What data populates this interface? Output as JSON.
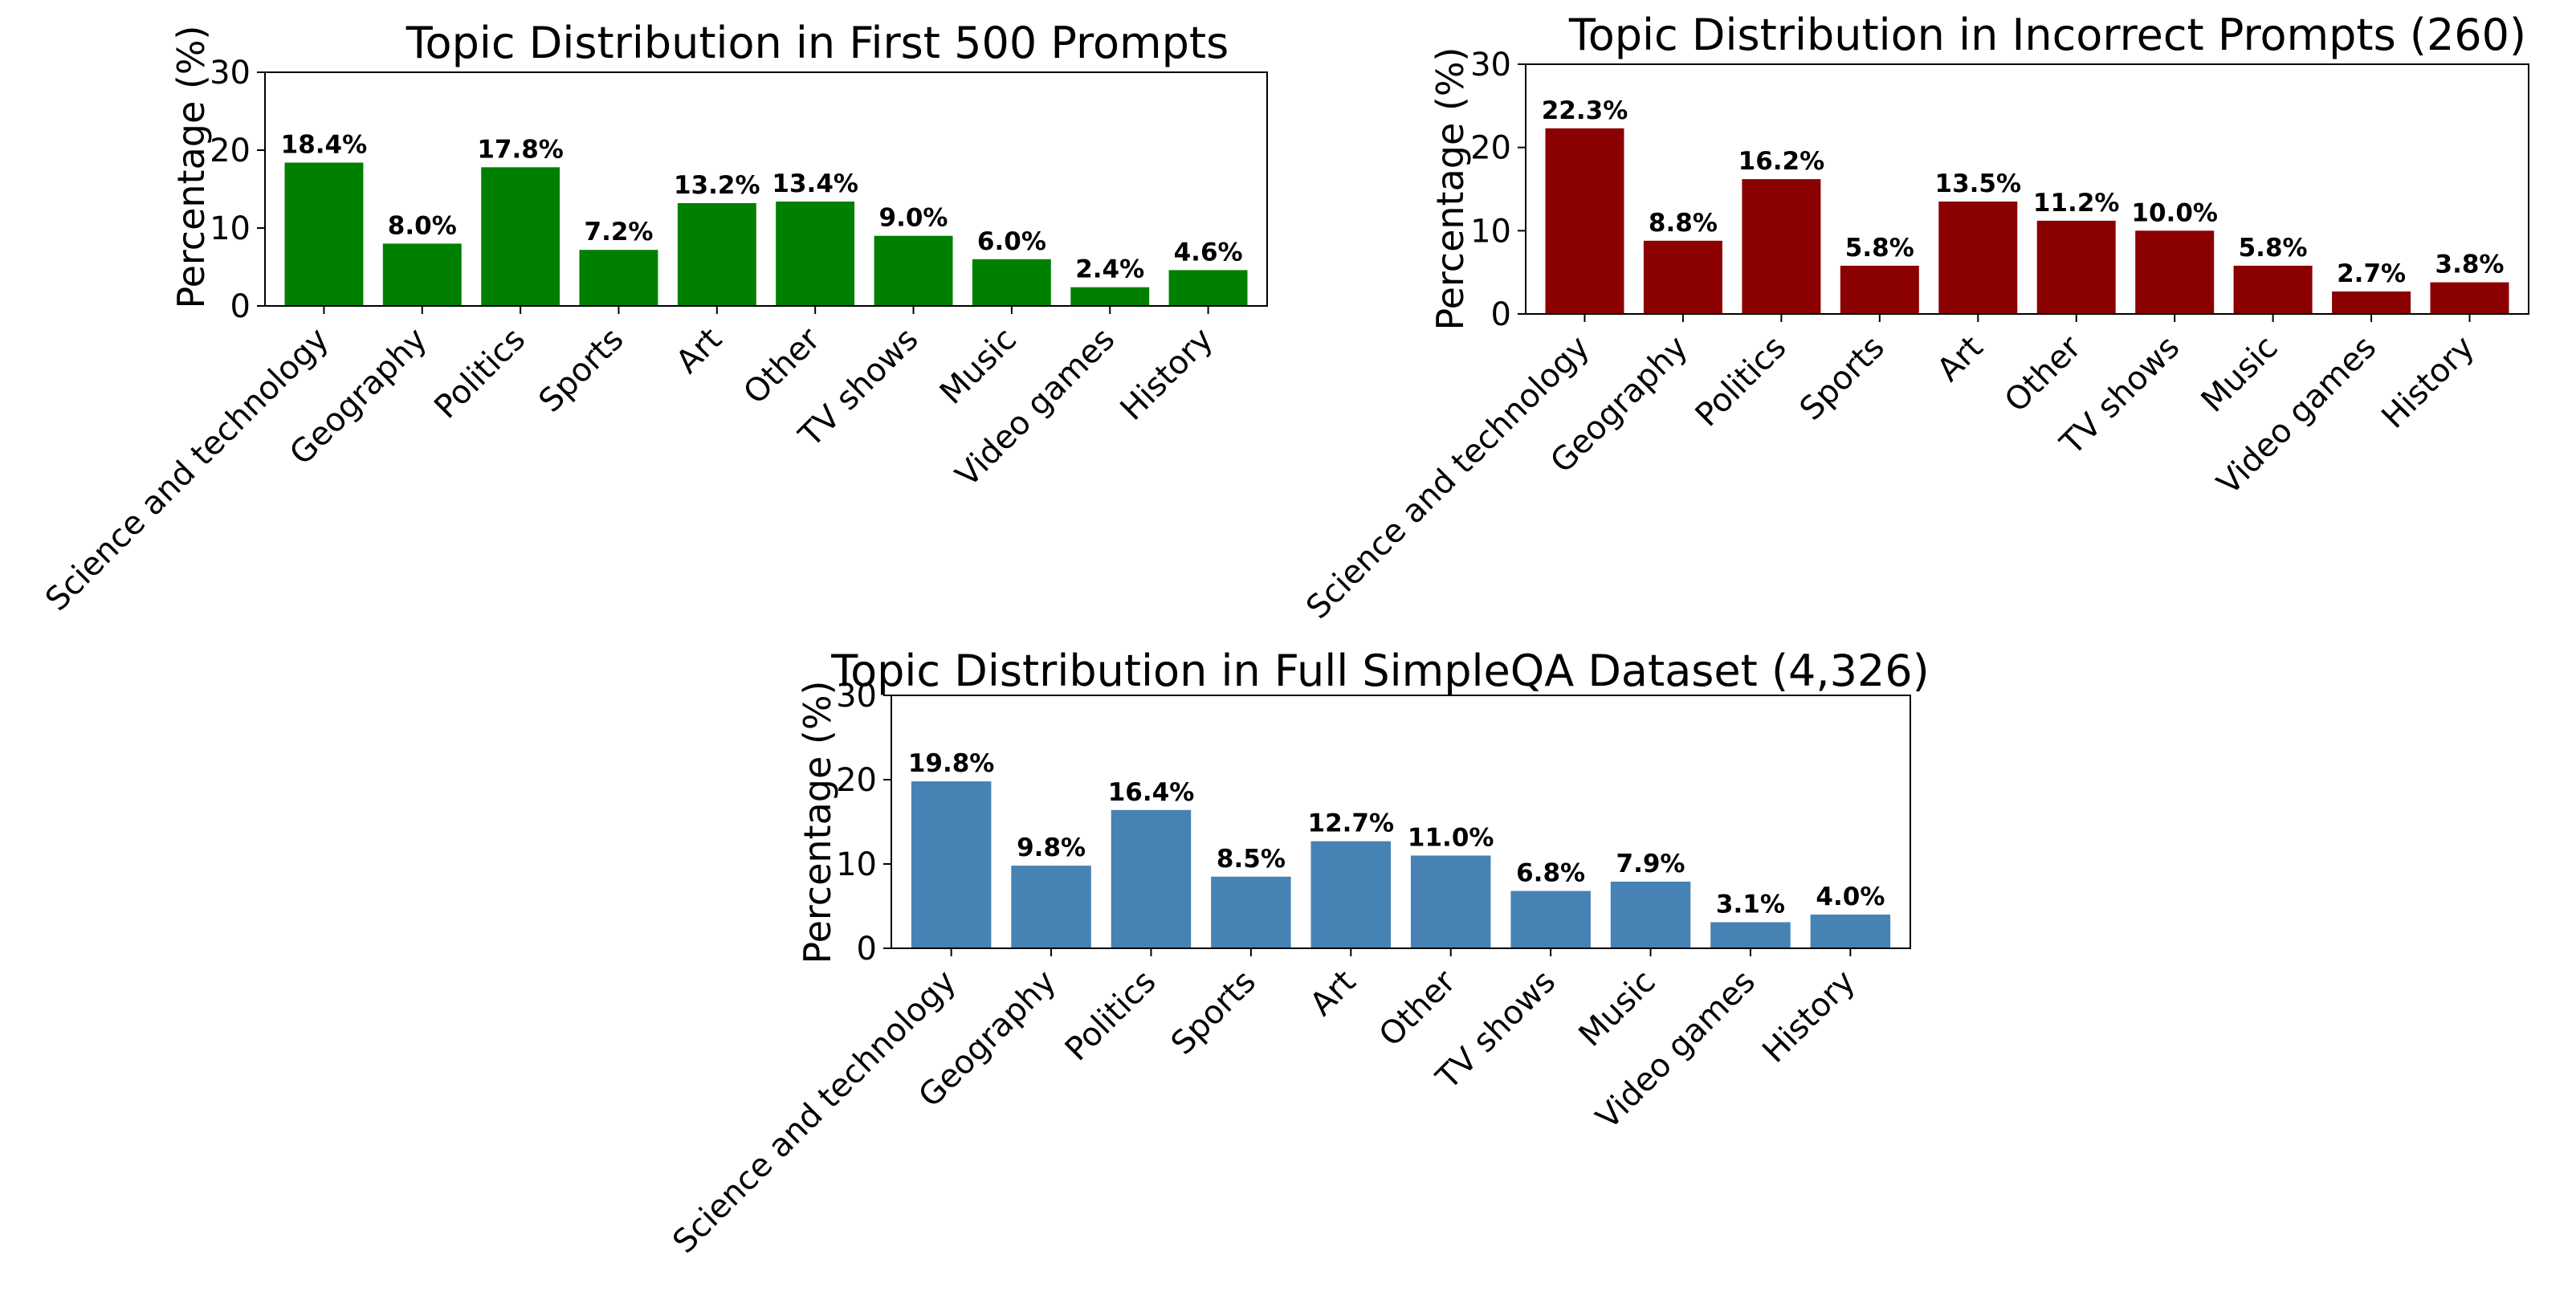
{
  "chart_data": [
    {
      "type": "bar",
      "title": "Topic Distribution in First 500 Prompts",
      "xlabel": "",
      "ylabel": "Percentage (%)",
      "ylim": [
        0,
        30
      ],
      "yticks": [
        "0",
        "10",
        "20",
        "30"
      ],
      "color": "#008000",
      "grid": false,
      "categories": [
        "Science and technology",
        "Geography",
        "Politics",
        "Sports",
        "Art",
        "Other",
        "TV shows",
        "Music",
        "Video games",
        "History"
      ],
      "values": [
        18.4,
        8.0,
        17.8,
        7.2,
        13.2,
        13.4,
        9.0,
        6.0,
        2.4,
        4.6
      ],
      "value_labels": [
        "18.4%",
        "8.0%",
        "17.8%",
        "7.2%",
        "13.2%",
        "13.4%",
        "9.0%",
        "6.0%",
        "2.4%",
        "4.6%"
      ]
    },
    {
      "type": "bar",
      "title": "Topic Distribution in Incorrect Prompts (260)",
      "xlabel": "",
      "ylabel": "Percentage (%)",
      "ylim": [
        0,
        30
      ],
      "yticks": [
        "0",
        "10",
        "20",
        "30"
      ],
      "color": "#8b0000",
      "grid": false,
      "categories": [
        "Science and technology",
        "Geography",
        "Politics",
        "Sports",
        "Art",
        "Other",
        "TV shows",
        "Music",
        "Video games",
        "History"
      ],
      "values": [
        22.3,
        8.8,
        16.2,
        5.8,
        13.5,
        11.2,
        10.0,
        5.8,
        2.7,
        3.8
      ],
      "value_labels": [
        "22.3%",
        "8.8%",
        "16.2%",
        "5.8%",
        "13.5%",
        "11.2%",
        "10.0%",
        "5.8%",
        "2.7%",
        "3.8%"
      ]
    },
    {
      "type": "bar",
      "title": "Topic Distribution in Full SimpleQA Dataset (4,326)",
      "xlabel": "",
      "ylabel": "Percentage (%)",
      "ylim": [
        0,
        30
      ],
      "yticks": [
        "0",
        "10",
        "20",
        "30"
      ],
      "color": "#4682b4",
      "grid": false,
      "categories": [
        "Science and technology",
        "Geography",
        "Politics",
        "Sports",
        "Art",
        "Other",
        "TV shows",
        "Music",
        "Video games",
        "History"
      ],
      "values": [
        19.8,
        9.8,
        16.4,
        8.5,
        12.7,
        11.0,
        6.8,
        7.9,
        3.1,
        4.0
      ],
      "value_labels": [
        "19.8%",
        "9.8%",
        "16.4%",
        "8.5%",
        "12.7%",
        "11.0%",
        "6.8%",
        "7.9%",
        "3.1%",
        "4.0%"
      ]
    }
  ]
}
